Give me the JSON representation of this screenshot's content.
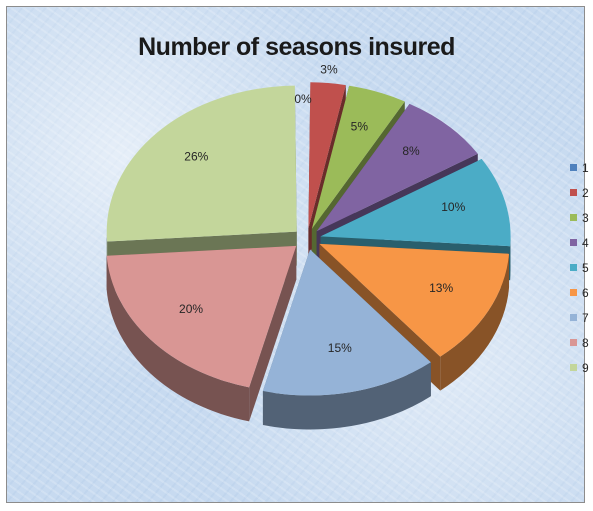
{
  "chart_data": {
    "type": "pie",
    "title": "Number of seasons insured",
    "categories": [
      "1",
      "2",
      "3",
      "4",
      "5",
      "6",
      "7",
      "8",
      "9"
    ],
    "values": [
      0,
      3,
      5,
      8,
      10,
      13,
      15,
      20,
      26
    ],
    "labels": [
      "0%",
      "3%",
      "5%",
      "8%",
      "10%",
      "13%",
      "15%",
      "20%",
      "26%"
    ],
    "colors": [
      "#4f81bd",
      "#c0504d",
      "#9bbb59",
      "#8064a2",
      "#4bacc6",
      "#f79646",
      "#95b3d7",
      "#d99694",
      "#c3d69b"
    ],
    "exploded": true,
    "three_d": true,
    "legend_position": "right"
  }
}
